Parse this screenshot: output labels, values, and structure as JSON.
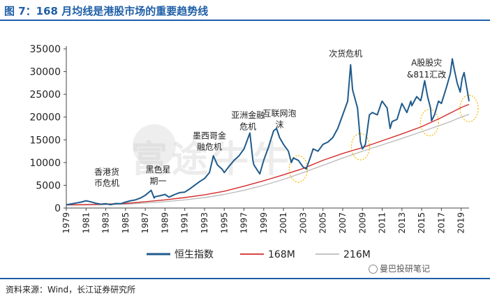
{
  "header": {
    "title": "图 7：168 月均线是港股市场的重要趋势线"
  },
  "footer": {
    "source": "资料来源：Wind，长江证券研究所"
  },
  "watermark": {
    "account": "曼巴投研笔记",
    "background_text": "富途牛牛",
    "icon": "wechat-icon"
  },
  "colors": {
    "hsi": "#1f5b8c",
    "ma168": "#d42a2a",
    "ma216": "#bdbdbd",
    "title": "#1f5fa8",
    "highlight": "#f5b800"
  },
  "chart_data": {
    "type": "line",
    "title": "168 月均线是港股市场的重要趋势线",
    "xlabel": "",
    "ylabel": "",
    "xlim": [
      1979,
      2019.8
    ],
    "ylim": [
      0,
      35000
    ],
    "yticks": [
      0,
      5000,
      10000,
      15000,
      20000,
      25000,
      30000,
      35000
    ],
    "ytick_labels": [
      "0",
      "5000",
      "10000",
      "15000",
      "20000",
      "25000",
      "30000",
      "35000"
    ],
    "xtick_labels": [
      "1979",
      "1981",
      "1983",
      "1985",
      "1987",
      "1989",
      "1991",
      "1993",
      "1995",
      "1997",
      "1999",
      "2001",
      "2003",
      "2005",
      "2007",
      "2009",
      "2011",
      "2013",
      "2015",
      "2017",
      "2019"
    ],
    "legend": {
      "position": "bottom",
      "entries": [
        "恒生指数",
        "168M",
        "216M"
      ]
    },
    "series": [
      {
        "name": "恒生指数",
        "points": [
          [
            1979,
            700
          ],
          [
            1979.5,
            900
          ],
          [
            1980,
            1100
          ],
          [
            1980.5,
            1300
          ],
          [
            1981,
            1600
          ],
          [
            1981.5,
            1350
          ],
          [
            1982,
            1050
          ],
          [
            1982.5,
            850
          ],
          [
            1983,
            950
          ],
          [
            1983.5,
            750
          ],
          [
            1984,
            1000
          ],
          [
            1984.5,
            950
          ],
          [
            1985,
            1300
          ],
          [
            1985.5,
            1600
          ],
          [
            1986,
            1800
          ],
          [
            1986.5,
            2200
          ],
          [
            1987,
            2800
          ],
          [
            1987.6,
            3900
          ],
          [
            1987.9,
            2200
          ],
          [
            1988,
            2500
          ],
          [
            1988.5,
            2700
          ],
          [
            1989,
            3000
          ],
          [
            1989.4,
            2400
          ],
          [
            1989.8,
            2800
          ],
          [
            1990,
            3000
          ],
          [
            1990.5,
            3400
          ],
          [
            1991,
            3500
          ],
          [
            1991.5,
            4200
          ],
          [
            1992,
            5000
          ],
          [
            1992.5,
            5800
          ],
          [
            1993,
            6500
          ],
          [
            1993.5,
            7800
          ],
          [
            1993.9,
            11500
          ],
          [
            1994.3,
            9500
          ],
          [
            1994.8,
            8500
          ],
          [
            1995,
            7800
          ],
          [
            1995.5,
            9200
          ],
          [
            1996,
            10500
          ],
          [
            1996.5,
            11500
          ],
          [
            1997,
            13000
          ],
          [
            1997.6,
            16500
          ],
          [
            1997.9,
            10500
          ],
          [
            1998,
            9500
          ],
          [
            1998.3,
            8500
          ],
          [
            1998.6,
            7500
          ],
          [
            1999,
            10500
          ],
          [
            1999.5,
            13500
          ],
          [
            2000,
            17000
          ],
          [
            2000.3,
            17500
          ],
          [
            2000.6,
            15500
          ],
          [
            2001,
            14000
          ],
          [
            2001.5,
            12500
          ],
          [
            2001.8,
            10000
          ],
          [
            2002,
            11000
          ],
          [
            2002.5,
            10500
          ],
          [
            2003,
            9000
          ],
          [
            2003.3,
            8600
          ],
          [
            2003.7,
            11000
          ],
          [
            2004,
            13000
          ],
          [
            2004.5,
            12500
          ],
          [
            2005,
            14000
          ],
          [
            2005.5,
            14500
          ],
          [
            2006,
            15500
          ],
          [
            2006.5,
            17500
          ],
          [
            2007,
            20500
          ],
          [
            2007.5,
            23500
          ],
          [
            2007.8,
            31500
          ],
          [
            2008,
            26000
          ],
          [
            2008.5,
            22000
          ],
          [
            2008.8,
            14500
          ],
          [
            2009,
            13000
          ],
          [
            2009.3,
            14000
          ],
          [
            2009.7,
            20500
          ],
          [
            2010,
            21000
          ],
          [
            2010.5,
            20500
          ],
          [
            2010.9,
            23000
          ],
          [
            2011,
            23500
          ],
          [
            2011.5,
            22000
          ],
          [
            2011.8,
            17500
          ],
          [
            2012,
            19000
          ],
          [
            2012.5,
            19500
          ],
          [
            2013,
            23000
          ],
          [
            2013.5,
            21000
          ],
          [
            2013.9,
            23500
          ],
          [
            2014,
            22500
          ],
          [
            2014.5,
            24500
          ],
          [
            2014.9,
            23600
          ],
          [
            2015,
            24500
          ],
          [
            2015.3,
            28000
          ],
          [
            2015.6,
            24500
          ],
          [
            2015.9,
            22000
          ],
          [
            2016,
            19200
          ],
          [
            2016.3,
            20500
          ],
          [
            2016.7,
            23500
          ],
          [
            2017,
            23000
          ],
          [
            2017.5,
            26500
          ],
          [
            2017.9,
            29500
          ],
          [
            2018.1,
            32800
          ],
          [
            2018.3,
            30500
          ],
          [
            2018.6,
            27500
          ],
          [
            2018.9,
            25500
          ],
          [
            2019.1,
            28500
          ],
          [
            2019.3,
            29800
          ],
          [
            2019.6,
            26000
          ],
          [
            2019.8,
            23500
          ]
        ]
      },
      {
        "name": "168M",
        "points": [
          [
            1979,
            700
          ],
          [
            1982,
            800
          ],
          [
            1985,
            1000
          ],
          [
            1987,
            1400
          ],
          [
            1989,
            1800
          ],
          [
            1991,
            2300
          ],
          [
            1993,
            2900
          ],
          [
            1995,
            3700
          ],
          [
            1997,
            4800
          ],
          [
            1999,
            6000
          ],
          [
            2001,
            7300
          ],
          [
            2003,
            8700
          ],
          [
            2005,
            10500
          ],
          [
            2007,
            12000
          ],
          [
            2009,
            13300
          ],
          [
            2011,
            14800
          ],
          [
            2013,
            16300
          ],
          [
            2015,
            17900
          ],
          [
            2017,
            19900
          ],
          [
            2018,
            21000
          ],
          [
            2019,
            22100
          ],
          [
            2019.8,
            22800
          ]
        ]
      },
      {
        "name": "216M",
        "points": [
          [
            1979,
            650
          ],
          [
            1982,
            700
          ],
          [
            1985,
            850
          ],
          [
            1987,
            1100
          ],
          [
            1989,
            1400
          ],
          [
            1991,
            1800
          ],
          [
            1993,
            2300
          ],
          [
            1995,
            3000
          ],
          [
            1997,
            3900
          ],
          [
            1999,
            5000
          ],
          [
            2001,
            6300
          ],
          [
            2003,
            7800
          ],
          [
            2005,
            9400
          ],
          [
            2007,
            11000
          ],
          [
            2009,
            12500
          ],
          [
            2011,
            13900
          ],
          [
            2013,
            15300
          ],
          [
            2015,
            16800
          ],
          [
            2017,
            18300
          ],
          [
            2018,
            19100
          ],
          [
            2019,
            20000
          ],
          [
            2019.8,
            20600
          ]
        ]
      }
    ],
    "annotations": [
      {
        "text": "香港货",
        "x": 1983.1,
        "y": 7300
      },
      {
        "text": "币危机",
        "x": 1983.1,
        "y": 4800
      },
      {
        "text": "黑色星",
        "x": 1988.3,
        "y": 7800
      },
      {
        "text": "期一",
        "x": 1988.3,
        "y": 5300
      },
      {
        "text": "墨西哥金",
        "x": 1993.5,
        "y": 15300
      },
      {
        "text": "融危机",
        "x": 1993.5,
        "y": 12800
      },
      {
        "text": "亚洲金融",
        "x": 1997.4,
        "y": 19800
      },
      {
        "text": "危机",
        "x": 1997.4,
        "y": 17300
      },
      {
        "text": "互联网泡",
        "x": 2000.6,
        "y": 20200
      },
      {
        "text": "沫",
        "x": 2000.6,
        "y": 17700
      },
      {
        "text": "次货危机",
        "x": 2007.3,
        "y": 33300
      },
      {
        "text": "A股股灾",
        "x": 2015.5,
        "y": 31300
      },
      {
        "text": "&811汇改",
        "x": 2015.5,
        "y": 28700
      }
    ],
    "highlights": [
      {
        "x": 2002.5,
        "y": 8600
      },
      {
        "x": 2008.8,
        "y": 13500
      },
      {
        "x": 2015.8,
        "y": 18800
      },
      {
        "x": 2019.8,
        "y": 21900
      }
    ]
  }
}
